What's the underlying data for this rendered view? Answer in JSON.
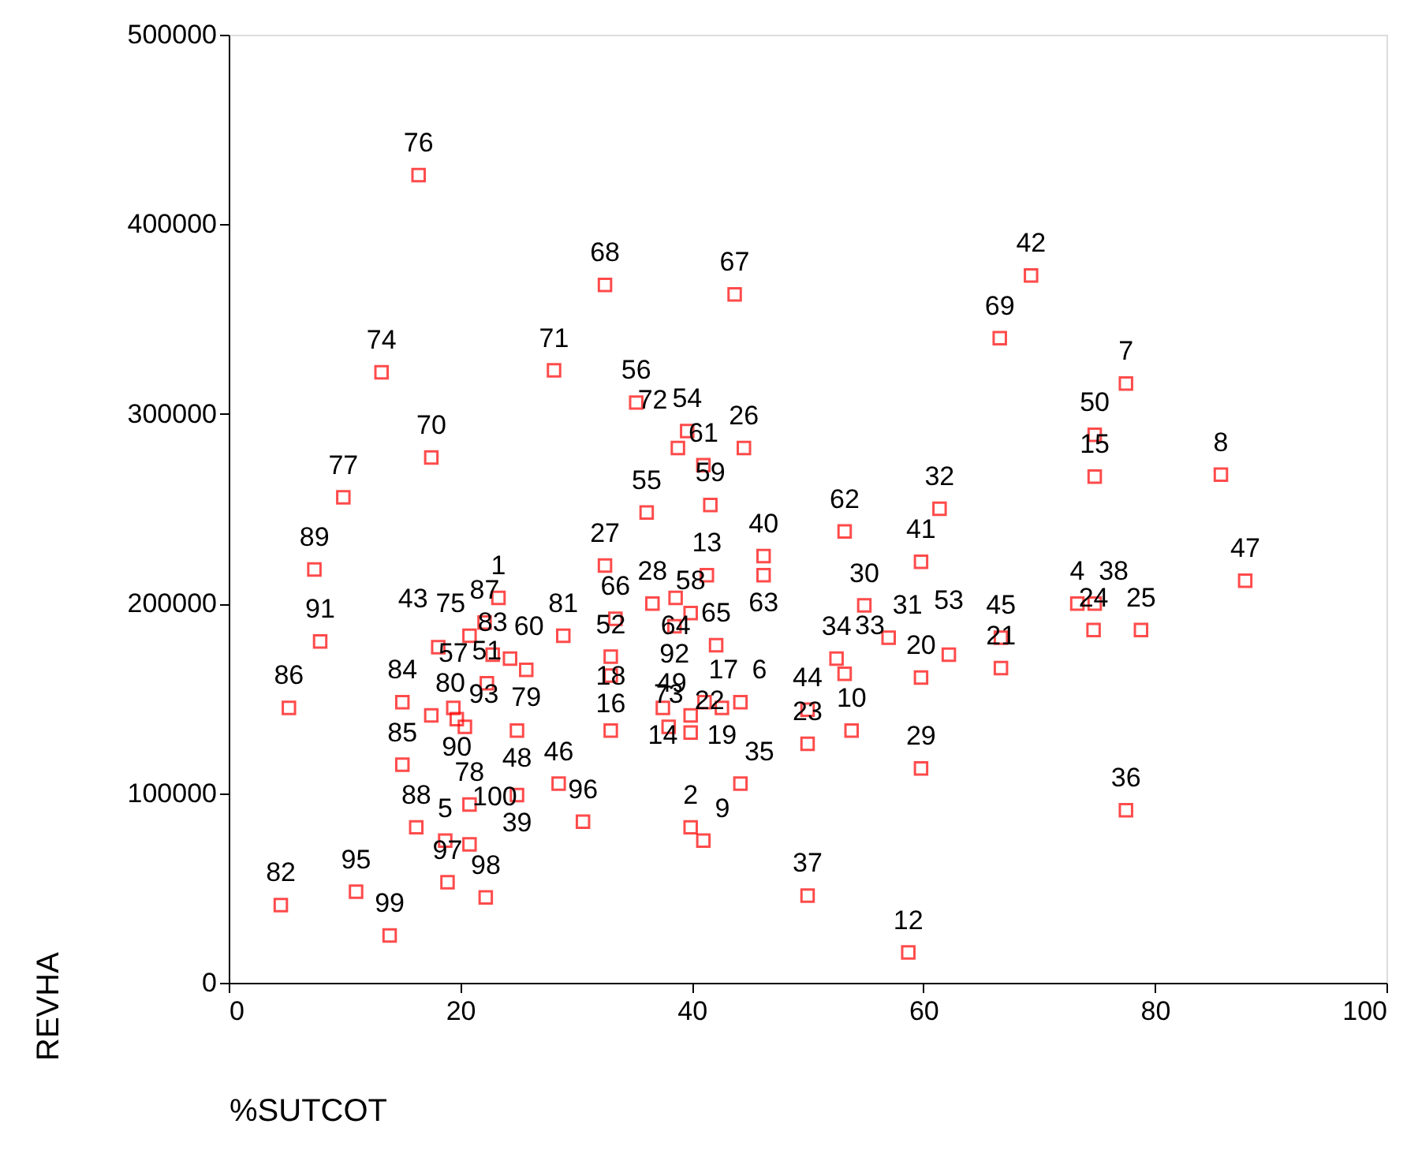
{
  "chart_data": {
    "type": "scatter",
    "xlabel": "%SUTCOT",
    "ylabel": "REVHA",
    "xlim": [
      0,
      100
    ],
    "ylim": [
      0,
      500000
    ],
    "xticks": [
      0,
      20,
      40,
      60,
      80,
      100
    ],
    "yticks": [
      0,
      100000,
      200000,
      300000,
      400000,
      500000
    ],
    "grid": false,
    "marker": "square",
    "series": [
      {
        "color": "#ff0000",
        "x": [
          16.4,
          32.5,
          13.2,
          28.1,
          17.5,
          9.9,
          7.4,
          32.5,
          23.3,
          22.1,
          33.4,
          20.8,
          18.1,
          22.8,
          24.3,
          25.7,
          28.9,
          22.3,
          33.0,
          33.0,
          33.0,
          15.0,
          17.5,
          19.4,
          19.7,
          20.4,
          24.9,
          5.2,
          7.9,
          15.0,
          28.5,
          24.9,
          20.8,
          30.6,
          16.2,
          18.7,
          20.8,
          18.9,
          22.2,
          11.0,
          4.5,
          13.9,
          43.7,
          66.6,
          35.2,
          39.6,
          38.8,
          41.0,
          44.5,
          41.6,
          36.1,
          53.2,
          61.4,
          69.3,
          77.5,
          74.8,
          74.8,
          85.7,
          87.8,
          46.2,
          46.2,
          59.8,
          41.3,
          36.6,
          38.6,
          39.9,
          38.5,
          42.1,
          41.1,
          42.6,
          44.2,
          37.5,
          39.9,
          38.0,
          39.9,
          50.0,
          50.0,
          53.8,
          54.9,
          52.5,
          53.2,
          57.0,
          59.8,
          62.2,
          66.7,
          66.7,
          59.8,
          44.2,
          39.9,
          41.0,
          50.0,
          58.7,
          73.3,
          74.8,
          74.7,
          78.8,
          77.5
        ],
        "values": [
          426000,
          368000,
          322000,
          323000,
          277000,
          256000,
          218000,
          220000,
          203000,
          190000,
          192000,
          183000,
          177000,
          173000,
          171000,
          165000,
          183000,
          158000,
          172000,
          162000,
          133000,
          148000,
          141000,
          145000,
          139000,
          135000,
          133000,
          145000,
          180000,
          115000,
          105000,
          99000,
          94000,
          85000,
          82000,
          75000,
          73000,
          53000,
          45000,
          48000,
          41000,
          25000,
          363000,
          340000,
          306000,
          291000,
          282000,
          273000,
          282000,
          252000,
          248000,
          238000,
          250000,
          373000,
          316000,
          289000,
          267000,
          268000,
          212000,
          225000,
          215000,
          222000,
          215000,
          200000,
          203000,
          195000,
          188000,
          178000,
          148000,
          145000,
          148000,
          145000,
          141000,
          135000,
          132000,
          144000,
          126000,
          133000,
          199000,
          171000,
          163000,
          182000,
          161000,
          173000,
          182000,
          166000,
          113000,
          105000,
          82000,
          75000,
          46000,
          16000,
          200000,
          200000,
          186000,
          186000,
          91000
        ]
      }
    ],
    "annotations": [
      {
        "text": "76",
        "x": 16.4,
        "y": 426000
      },
      {
        "text": "68",
        "x": 32.5,
        "y": 368000
      },
      {
        "text": "74",
        "x": 13.2,
        "y": 322000
      },
      {
        "text": "71",
        "x": 28.1,
        "y": 323000
      },
      {
        "text": "70",
        "x": 17.5,
        "y": 277000
      },
      {
        "text": "77",
        "x": 9.9,
        "y": 256000
      },
      {
        "text": "89",
        "x": 7.4,
        "y": 218000
      },
      {
        "text": "27",
        "x": 32.5,
        "y": 220000
      },
      {
        "text": "1",
        "x": 23.3,
        "y": 203000
      },
      {
        "text": "87",
        "x": 22.1,
        "y": 190000
      },
      {
        "text": "66",
        "x": 33.4,
        "y": 192000
      },
      {
        "text": "75",
        "x": 20.8,
        "y": 183000
      },
      {
        "text": "43",
        "x": 18.1,
        "y": 177000
      },
      {
        "text": "83",
        "x": 22.8,
        "y": 173000
      },
      {
        "text": "60",
        "x": 24.3,
        "y": 171000
      },
      {
        "text": "79",
        "x": 25.7,
        "y": 165000
      },
      {
        "text": "81",
        "x": 28.9,
        "y": 183000
      },
      {
        "text": "51",
        "x": 22.3,
        "y": 158000
      },
      {
        "text": "52",
        "x": 33.0,
        "y": 172000
      },
      {
        "text": "16",
        "x": 33.0,
        "y": 162000
      },
      {
        "text": "18",
        "x": 33.0,
        "y": 133000
      },
      {
        "text": "84",
        "x": 15.0,
        "y": 148000
      },
      {
        "text": "80",
        "x": 17.5,
        "y": 141000
      },
      {
        "text": "57",
        "x": 19.4,
        "y": 145000
      },
      {
        "text": "90",
        "x": 19.7,
        "y": 139000
      },
      {
        "text": "93",
        "x": 20.4,
        "y": 135000
      },
      {
        "text": "48",
        "x": 24.9,
        "y": 133000
      },
      {
        "text": "86",
        "x": 5.2,
        "y": 145000
      },
      {
        "text": "91",
        "x": 7.9,
        "y": 180000
      },
      {
        "text": "85",
        "x": 15.0,
        "y": 115000
      },
      {
        "text": "46",
        "x": 28.5,
        "y": 105000
      },
      {
        "text": "39",
        "x": 24.9,
        "y": 99000
      },
      {
        "text": "78",
        "x": 20.8,
        "y": 94000
      },
      {
        "text": "96",
        "x": 30.6,
        "y": 85000
      },
      {
        "text": "88",
        "x": 16.2,
        "y": 82000
      },
      {
        "text": "5",
        "x": 18.7,
        "y": 75000
      },
      {
        "text": "100",
        "x": 20.8,
        "y": 73000
      },
      {
        "text": "97",
        "x": 18.9,
        "y": 53000
      },
      {
        "text": "98",
        "x": 22.2,
        "y": 45000
      },
      {
        "text": "95",
        "x": 11.0,
        "y": 48000
      },
      {
        "text": "82",
        "x": 4.5,
        "y": 41000
      },
      {
        "text": "99",
        "x": 13.9,
        "y": 25000
      },
      {
        "text": "67",
        "x": 43.7,
        "y": 363000
      },
      {
        "text": "69",
        "x": 66.6,
        "y": 340000
      },
      {
        "text": "56",
        "x": 35.2,
        "y": 306000
      },
      {
        "text": "54",
        "x": 39.6,
        "y": 291000
      },
      {
        "text": "72",
        "x": 38.8,
        "y": 282000
      },
      {
        "text": "61",
        "x": 41.0,
        "y": 273000
      },
      {
        "text": "26",
        "x": 44.5,
        "y": 282000
      },
      {
        "text": "59",
        "x": 41.6,
        "y": 252000
      },
      {
        "text": "55",
        "x": 36.1,
        "y": 248000
      },
      {
        "text": "62",
        "x": 53.2,
        "y": 238000
      },
      {
        "text": "32",
        "x": 61.4,
        "y": 250000
      },
      {
        "text": "42",
        "x": 69.3,
        "y": 373000
      },
      {
        "text": "7",
        "x": 77.5,
        "y": 316000
      },
      {
        "text": "50",
        "x": 74.8,
        "y": 289000
      },
      {
        "text": "15",
        "x": 74.8,
        "y": 267000
      },
      {
        "text": "8",
        "x": 85.7,
        "y": 268000
      },
      {
        "text": "47",
        "x": 87.8,
        "y": 212000
      },
      {
        "text": "40",
        "x": 46.2,
        "y": 225000
      },
      {
        "text": "63",
        "x": 46.2,
        "y": 215000
      },
      {
        "text": "41",
        "x": 59.8,
        "y": 222000
      },
      {
        "text": "13",
        "x": 41.3,
        "y": 215000
      },
      {
        "text": "28",
        "x": 36.6,
        "y": 200000
      },
      {
        "text": "64",
        "x": 38.6,
        "y": 203000
      },
      {
        "text": "58",
        "x": 39.9,
        "y": 195000
      },
      {
        "text": "92",
        "x": 38.5,
        "y": 188000
      },
      {
        "text": "65",
        "x": 42.1,
        "y": 178000
      },
      {
        "text": "17",
        "x": 41.1,
        "y": 148000
      },
      {
        "text": "19",
        "x": 42.6,
        "y": 145000
      },
      {
        "text": "6",
        "x": 44.2,
        "y": 148000
      },
      {
        "text": "14",
        "x": 37.5,
        "y": 145000
      },
      {
        "text": "49",
        "x": 39.9,
        "y": 141000
      },
      {
        "text": "73",
        "x": 38.0,
        "y": 135000
      },
      {
        "text": "22",
        "x": 39.9,
        "y": 132000
      },
      {
        "text": "44",
        "x": 50.0,
        "y": 144000
      },
      {
        "text": "23",
        "x": 50.0,
        "y": 126000
      },
      {
        "text": "10",
        "x": 53.8,
        "y": 133000
      },
      {
        "text": "30",
        "x": 54.9,
        "y": 199000
      },
      {
        "text": "34",
        "x": 52.5,
        "y": 171000
      },
      {
        "text": "33",
        "x": 53.2,
        "y": 163000
      },
      {
        "text": "31",
        "x": 57.0,
        "y": 182000
      },
      {
        "text": "20",
        "x": 59.8,
        "y": 161000
      },
      {
        "text": "53",
        "x": 62.2,
        "y": 173000
      },
      {
        "text": "45",
        "x": 66.7,
        "y": 182000
      },
      {
        "text": "21",
        "x": 66.7,
        "y": 166000
      },
      {
        "text": "29",
        "x": 59.8,
        "y": 113000
      },
      {
        "text": "35",
        "x": 44.2,
        "y": 105000
      },
      {
        "text": "2",
        "x": 39.9,
        "y": 82000
      },
      {
        "text": "9",
        "x": 41.0,
        "y": 75000
      },
      {
        "text": "37",
        "x": 50.0,
        "y": 46000
      },
      {
        "text": "12",
        "x": 58.7,
        "y": 16000
      },
      {
        "text": "4",
        "x": 73.3,
        "y": 200000
      },
      {
        "text": "38",
        "x": 74.8,
        "y": 200000
      },
      {
        "text": "24",
        "x": 74.7,
        "y": 186000
      },
      {
        "text": "25",
        "x": 78.8,
        "y": 186000
      },
      {
        "text": "36",
        "x": 77.5,
        "y": 91000
      }
    ]
  }
}
